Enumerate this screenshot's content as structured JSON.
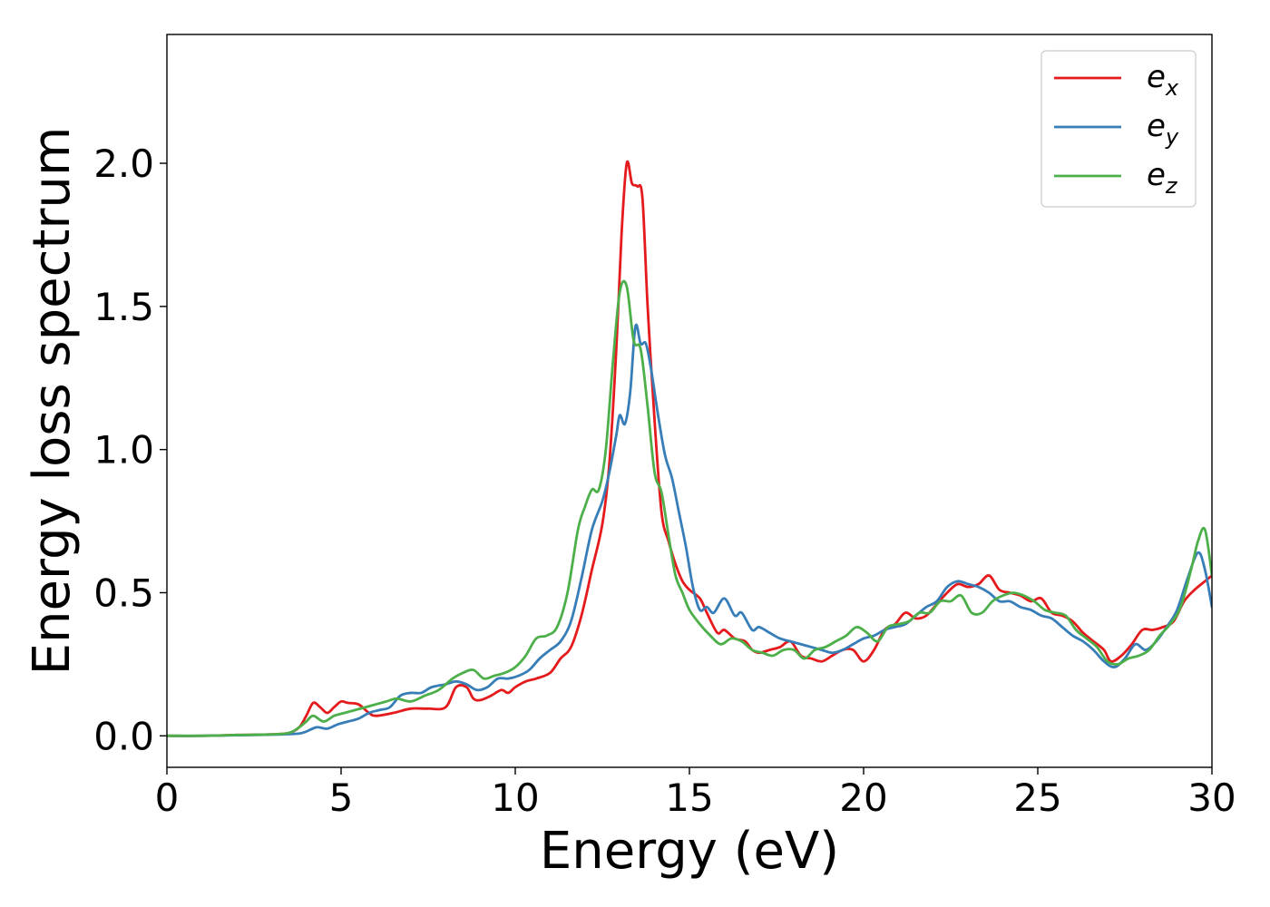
{
  "chart_data": {
    "type": "line",
    "xlabel": "Energy (eV)",
    "ylabel": "Energy loss spectrum",
    "xlim": [
      0,
      30
    ],
    "ylim": [
      -0.11,
      2.45
    ],
    "xticks": [
      0,
      5,
      10,
      15,
      20,
      25,
      30
    ],
    "yticks": [
      0.0,
      0.5,
      1.0,
      1.5,
      2.0
    ],
    "xtick_labels": [
      "0",
      "5",
      "10",
      "15",
      "20",
      "25",
      "30"
    ],
    "ytick_labels": [
      "0.0",
      "0.5",
      "1.0",
      "1.5",
      "2.0"
    ],
    "grid": false,
    "legend_position": "top-right",
    "series": [
      {
        "name": "e_x",
        "label_base": "e",
        "label_sub": "x",
        "color": "#e41a1c",
        "x": [
          0,
          1,
          2,
          3,
          3.5,
          3.8,
          4.0,
          4.2,
          4.4,
          4.6,
          4.8,
          5.0,
          5.2,
          5.5,
          5.8,
          6.0,
          6.5,
          7.0,
          7.5,
          8.0,
          8.3,
          8.6,
          8.8,
          9.0,
          9.3,
          9.6,
          9.8,
          10.0,
          10.3,
          10.6,
          11.0,
          11.3,
          11.6,
          11.9,
          12.2,
          12.5,
          12.7,
          12.9,
          13.05,
          13.2,
          13.35,
          13.5,
          13.65,
          13.8,
          14.0,
          14.2,
          14.4,
          14.6,
          14.8,
          15.0,
          15.3,
          15.5,
          15.8,
          16.0,
          16.3,
          16.6,
          16.8,
          17.0,
          17.3,
          17.6,
          17.9,
          18.2,
          18.5,
          18.8,
          19.1,
          19.4,
          19.7,
          20.0,
          20.3,
          20.6,
          20.9,
          21.2,
          21.5,
          21.8,
          22.1,
          22.4,
          22.7,
          23.0,
          23.3,
          23.6,
          23.9,
          24.2,
          24.5,
          24.8,
          25.1,
          25.4,
          25.7,
          26.0,
          26.3,
          26.6,
          26.9,
          27.1,
          27.4,
          27.7,
          28.0,
          28.3,
          28.6,
          28.9,
          29.2,
          29.5,
          29.8,
          30.0
        ],
        "y": [
          0.0,
          0.0,
          0.003,
          0.005,
          0.01,
          0.03,
          0.07,
          0.115,
          0.1,
          0.08,
          0.1,
          0.12,
          0.115,
          0.11,
          0.08,
          0.07,
          0.08,
          0.095,
          0.095,
          0.1,
          0.17,
          0.17,
          0.13,
          0.125,
          0.14,
          0.16,
          0.15,
          0.17,
          0.19,
          0.2,
          0.22,
          0.27,
          0.31,
          0.42,
          0.58,
          0.74,
          0.95,
          1.35,
          1.75,
          2.0,
          1.93,
          1.92,
          1.88,
          1.5,
          1.1,
          0.78,
          0.68,
          0.6,
          0.54,
          0.51,
          0.48,
          0.43,
          0.36,
          0.37,
          0.34,
          0.33,
          0.3,
          0.29,
          0.3,
          0.31,
          0.33,
          0.28,
          0.27,
          0.26,
          0.28,
          0.3,
          0.3,
          0.26,
          0.3,
          0.37,
          0.39,
          0.43,
          0.41,
          0.42,
          0.46,
          0.5,
          0.53,
          0.52,
          0.53,
          0.56,
          0.51,
          0.5,
          0.49,
          0.47,
          0.48,
          0.43,
          0.42,
          0.4,
          0.36,
          0.33,
          0.3,
          0.26,
          0.28,
          0.32,
          0.37,
          0.37,
          0.38,
          0.4,
          0.47,
          0.51,
          0.54,
          0.56
        ]
      },
      {
        "name": "e_y",
        "label_base": "e",
        "label_sub": "y",
        "color": "#377eb8",
        "x": [
          0,
          1,
          2,
          3,
          3.5,
          3.8,
          4.0,
          4.3,
          4.6,
          4.9,
          5.2,
          5.5,
          5.8,
          6.1,
          6.4,
          6.7,
          7.0,
          7.3,
          7.6,
          8.0,
          8.3,
          8.6,
          8.9,
          9.2,
          9.5,
          9.8,
          10.1,
          10.4,
          10.7,
          11.0,
          11.3,
          11.6,
          11.9,
          12.2,
          12.5,
          12.7,
          12.9,
          13.0,
          13.15,
          13.3,
          13.45,
          13.6,
          13.75,
          13.9,
          14.1,
          14.3,
          14.5,
          14.7,
          14.9,
          15.1,
          15.3,
          15.5,
          15.7,
          16.0,
          16.3,
          16.5,
          16.8,
          17.0,
          17.3,
          17.6,
          17.9,
          18.2,
          18.5,
          18.8,
          19.1,
          19.4,
          19.7,
          20.0,
          20.3,
          20.6,
          20.9,
          21.2,
          21.5,
          21.8,
          22.1,
          22.4,
          22.7,
          23.0,
          23.3,
          23.6,
          23.9,
          24.2,
          24.5,
          24.8,
          25.1,
          25.4,
          25.7,
          26.0,
          26.3,
          26.6,
          26.9,
          27.2,
          27.5,
          27.8,
          28.1,
          28.4,
          28.7,
          29.0,
          29.3,
          29.6,
          29.8,
          30.0
        ],
        "y": [
          0.0,
          0.0,
          0.002,
          0.004,
          0.006,
          0.008,
          0.015,
          0.03,
          0.025,
          0.04,
          0.05,
          0.06,
          0.08,
          0.09,
          0.1,
          0.14,
          0.15,
          0.15,
          0.17,
          0.18,
          0.19,
          0.18,
          0.16,
          0.17,
          0.2,
          0.2,
          0.21,
          0.23,
          0.27,
          0.3,
          0.33,
          0.4,
          0.55,
          0.72,
          0.82,
          0.92,
          1.05,
          1.12,
          1.09,
          1.2,
          1.43,
          1.37,
          1.37,
          1.28,
          1.12,
          0.98,
          0.9,
          0.78,
          0.66,
          0.52,
          0.44,
          0.45,
          0.43,
          0.48,
          0.42,
          0.43,
          0.37,
          0.38,
          0.36,
          0.34,
          0.33,
          0.32,
          0.31,
          0.3,
          0.29,
          0.3,
          0.32,
          0.34,
          0.35,
          0.37,
          0.38,
          0.39,
          0.42,
          0.45,
          0.47,
          0.52,
          0.54,
          0.53,
          0.52,
          0.5,
          0.47,
          0.47,
          0.45,
          0.44,
          0.42,
          0.41,
          0.38,
          0.35,
          0.33,
          0.3,
          0.26,
          0.24,
          0.27,
          0.32,
          0.3,
          0.33,
          0.38,
          0.44,
          0.55,
          0.64,
          0.58,
          0.45
        ]
      },
      {
        "name": "e_z",
        "label_base": "e",
        "label_sub": "z",
        "color": "#4daf4a",
        "x": [
          0,
          1,
          2,
          3,
          3.5,
          3.8,
          4.0,
          4.2,
          4.5,
          4.8,
          5.1,
          5.4,
          5.7,
          6.0,
          6.3,
          6.6,
          7.0,
          7.4,
          7.8,
          8.2,
          8.5,
          8.8,
          9.1,
          9.4,
          9.7,
          10.0,
          10.3,
          10.6,
          10.9,
          11.2,
          11.5,
          11.8,
          12.0,
          12.2,
          12.4,
          12.6,
          12.8,
          13.0,
          13.2,
          13.4,
          13.6,
          13.8,
          14.0,
          14.2,
          14.4,
          14.6,
          14.8,
          15.0,
          15.3,
          15.6,
          15.9,
          16.2,
          16.5,
          16.8,
          17.1,
          17.4,
          17.7,
          18.0,
          18.3,
          18.6,
          18.9,
          19.2,
          19.5,
          19.8,
          20.1,
          20.4,
          20.7,
          21.0,
          21.3,
          21.6,
          21.9,
          22.2,
          22.5,
          22.8,
          23.1,
          23.4,
          23.7,
          24.0,
          24.3,
          24.6,
          24.9,
          25.2,
          25.5,
          25.8,
          26.1,
          26.4,
          26.7,
          27.0,
          27.3,
          27.6,
          27.9,
          28.2,
          28.5,
          28.8,
          29.1,
          29.4,
          29.6,
          29.8,
          30.0
        ],
        "y": [
          0.0,
          0.0,
          0.003,
          0.005,
          0.01,
          0.03,
          0.05,
          0.07,
          0.05,
          0.07,
          0.08,
          0.09,
          0.1,
          0.11,
          0.12,
          0.13,
          0.12,
          0.14,
          0.16,
          0.2,
          0.22,
          0.23,
          0.2,
          0.21,
          0.22,
          0.24,
          0.28,
          0.34,
          0.35,
          0.38,
          0.5,
          0.72,
          0.8,
          0.86,
          0.86,
          1.0,
          1.3,
          1.55,
          1.57,
          1.38,
          1.35,
          1.15,
          0.92,
          0.85,
          0.7,
          0.56,
          0.5,
          0.44,
          0.39,
          0.35,
          0.32,
          0.34,
          0.33,
          0.3,
          0.29,
          0.28,
          0.3,
          0.3,
          0.27,
          0.3,
          0.31,
          0.33,
          0.35,
          0.38,
          0.36,
          0.33,
          0.38,
          0.39,
          0.4,
          0.43,
          0.43,
          0.47,
          0.47,
          0.49,
          0.43,
          0.43,
          0.47,
          0.49,
          0.5,
          0.49,
          0.47,
          0.44,
          0.43,
          0.42,
          0.37,
          0.34,
          0.31,
          0.26,
          0.25,
          0.27,
          0.28,
          0.3,
          0.35,
          0.39,
          0.45,
          0.58,
          0.68,
          0.72,
          0.56
        ]
      }
    ]
  }
}
